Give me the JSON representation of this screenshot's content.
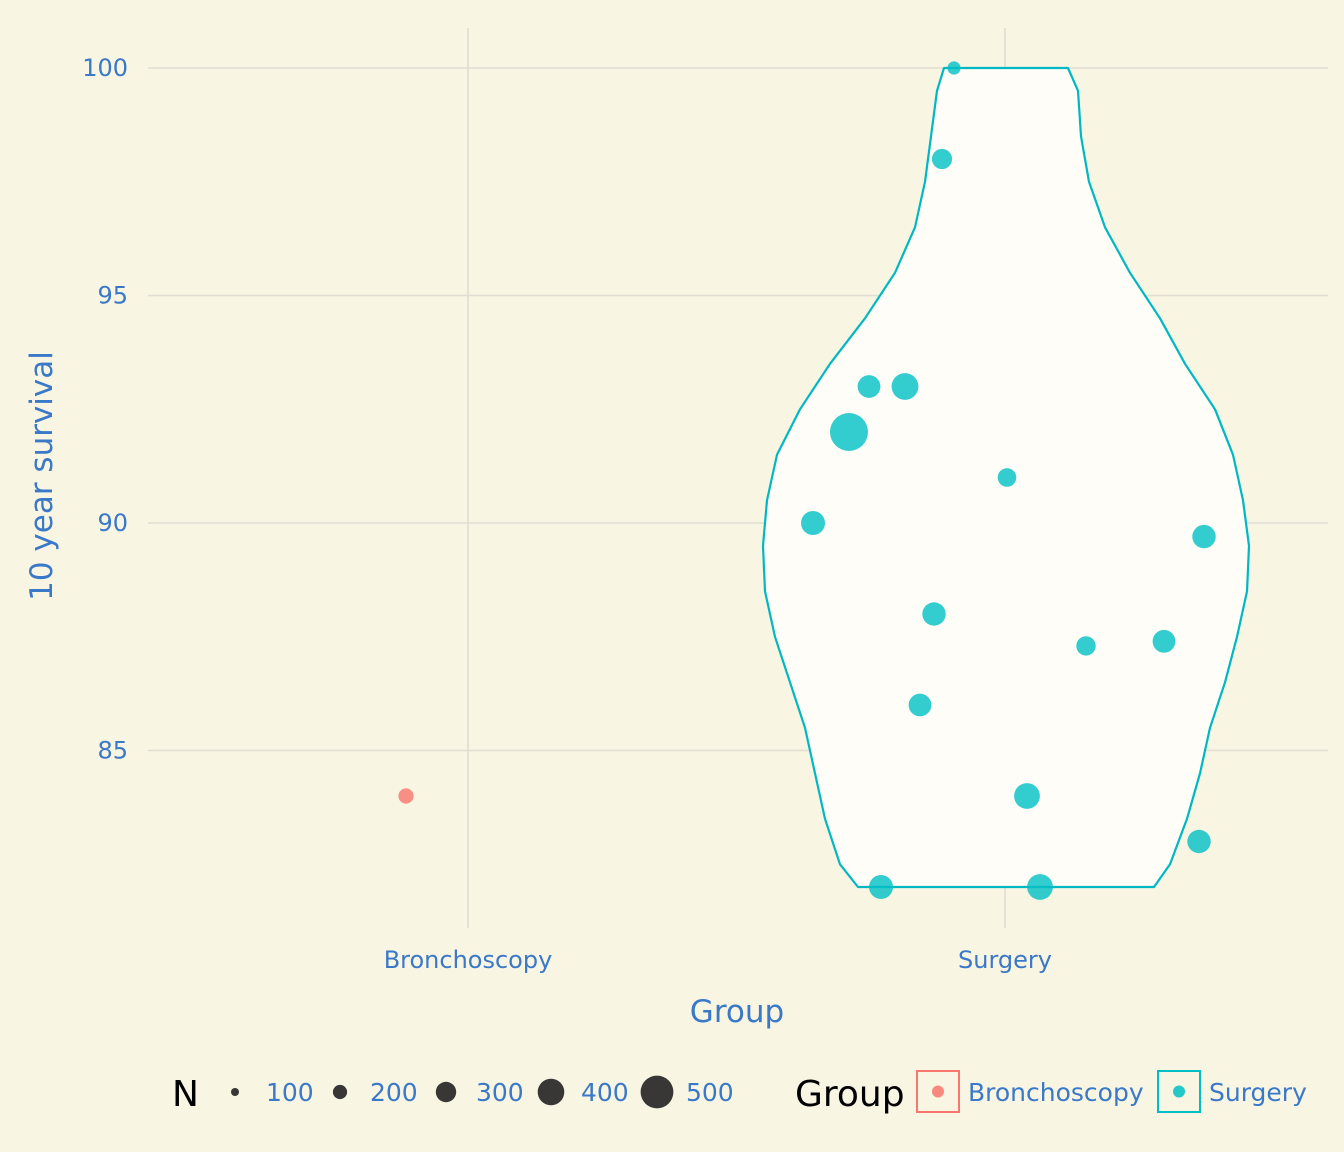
{
  "chart_data": {
    "type": "scatter",
    "xlabel": "Group",
    "ylabel": "10 year survival",
    "categories": [
      "Bronchoscopy",
      "Surgery"
    ],
    "ylim": [
      81,
      101
    ],
    "yticks": [
      85,
      90,
      95,
      100
    ],
    "grid": true,
    "violin": {
      "group": "Surgery",
      "ymin": 82,
      "ymax": 100
    },
    "series": [
      {
        "name": "Bronchoscopy",
        "color": "#f8766d",
        "points": [
          {
            "x": "Bronchoscopy",
            "y": 84,
            "n": 80
          }
        ]
      },
      {
        "name": "Surgery",
        "color": "#00bfc4",
        "points": [
          {
            "x": "Surgery",
            "y": 100,
            "n": 60
          },
          {
            "x": "Surgery",
            "y": 98,
            "n": 140
          },
          {
            "x": "Surgery",
            "y": 93,
            "n": 180
          },
          {
            "x": "Surgery",
            "y": 93,
            "n": 250
          },
          {
            "x": "Surgery",
            "y": 92,
            "n": 500
          },
          {
            "x": "Surgery",
            "y": 91,
            "n": 120
          },
          {
            "x": "Surgery",
            "y": 90,
            "n": 200
          },
          {
            "x": "Surgery",
            "y": 89.7,
            "n": 190
          },
          {
            "x": "Surgery",
            "y": 88,
            "n": 190
          },
          {
            "x": "Surgery",
            "y": 87.4,
            "n": 180
          },
          {
            "x": "Surgery",
            "y": 87.3,
            "n": 130
          },
          {
            "x": "Surgery",
            "y": 86,
            "n": 180
          },
          {
            "x": "Surgery",
            "y": 84,
            "n": 230
          },
          {
            "x": "Surgery",
            "y": 83,
            "n": 190
          },
          {
            "x": "Surgery",
            "y": 82,
            "n": 200
          },
          {
            "x": "Surgery",
            "y": 82,
            "n": 230
          }
        ]
      }
    ],
    "legend": {
      "size_title": "N",
      "size_levels": [
        {
          "label": "100",
          "n": 100
        },
        {
          "label": "200",
          "n": 200
        },
        {
          "label": "300",
          "n": 300
        },
        {
          "label": "400",
          "n": 400
        },
        {
          "label": "500",
          "n": 500
        }
      ],
      "group_title": "Group",
      "groups": [
        {
          "label": "Bronchoscopy",
          "color": "#f8766d"
        },
        {
          "label": "Surgery",
          "color": "#00bfc4"
        }
      ],
      "placement": "bottom"
    }
  }
}
